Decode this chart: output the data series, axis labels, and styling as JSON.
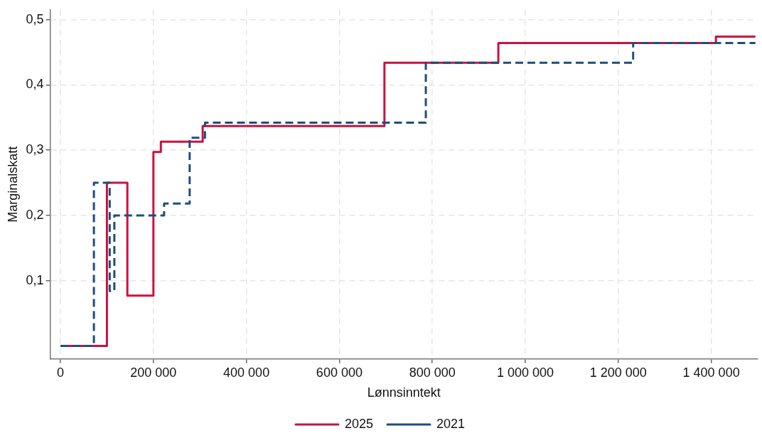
{
  "chart_data": {
    "type": "step",
    "xlabel": "Lønnsinntekt",
    "ylabel": "Marginalskatt",
    "xlim": [
      -22000,
      1500000
    ],
    "xticks": [
      0,
      {
        "value": 200000,
        "label": "200 000"
      },
      {
        "value": 400000,
        "label": "400 000"
      },
      {
        "value": 600000,
        "label": "600 000"
      },
      {
        "value": 800000,
        "label": "800 000"
      },
      {
        "value": 1000000,
        "label": "1 000 000"
      },
      {
        "value": 1200000,
        "label": "1 200 000"
      },
      {
        "value": 1400000,
        "label": "1 400 000"
      }
    ],
    "ylim": [
      -0.02,
      0.515
    ],
    "yticks": [
      {
        "value": 0.1,
        "label": "0,1"
      },
      {
        "value": 0.2,
        "label": "0,2"
      },
      {
        "value": 0.3,
        "label": "0,3"
      },
      {
        "value": 0.4,
        "label": "0,4"
      },
      {
        "value": 0.5,
        "label": "0,5"
      }
    ],
    "grid": true,
    "legend": "bottom",
    "marker": "none",
    "series": [
      {
        "name": "2025",
        "color": "#cc1040",
        "line_style": "solid",
        "x": [
          0,
          100000,
          144000,
          200000,
          216000,
          306000,
          697000,
          942000,
          1410000,
          1495000
        ],
        "values": [
          0,
          0.25,
          0.077,
          0.297,
          0.313,
          0.337,
          0.434,
          0.464,
          0.474,
          0.474
        ]
      },
      {
        "name": "2021",
        "color": "#1f4e79",
        "line_style": "dashed",
        "x": [
          0,
          72000,
          106000,
          116000,
          223000,
          278000,
          311000,
          786000,
          1232000,
          1495000
        ],
        "values": [
          0,
          0.25,
          0.084,
          0.2,
          0.218,
          0.319,
          0.342,
          0.434,
          0.464,
          0.464
        ]
      }
    ]
  }
}
